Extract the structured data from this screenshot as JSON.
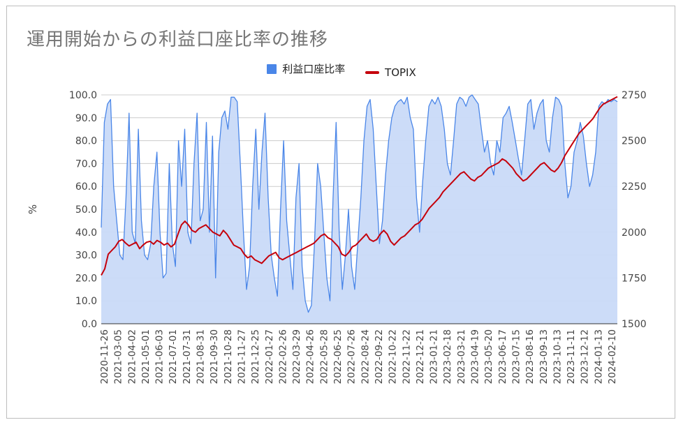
{
  "chart_data": {
    "type": "area+line",
    "title": "運用開始からの利益口座比率の推移",
    "ylabel_left": "%",
    "ylabel_right": "",
    "xlabel": "",
    "ylim_left": [
      0,
      100
    ],
    "ylim_right": [
      1500,
      2750
    ],
    "left_ticks": [
      "0.0",
      "10.0",
      "20.0",
      "30.0",
      "40.0",
      "50.0",
      "60.0",
      "70.0",
      "80.0",
      "90.0",
      "100.0"
    ],
    "right_ticks": [
      "1500",
      "1750",
      "2000",
      "2250",
      "2500",
      "2750"
    ],
    "x_tick_labels": [
      "2020-11-26",
      "2021-03-05",
      "2021-04-02",
      "2021-05-01",
      "2021-06-03",
      "2021-07-01",
      "2021-07-31",
      "2021-08-31",
      "2021-09-30",
      "2021-10-28",
      "2021-11-27",
      "2021-12-25",
      "2022-01-27",
      "2022-02-26",
      "2022-03-29",
      "2022-04-26",
      "2022-05-28",
      "2022-06-25",
      "2022-07-26",
      "2022-08-24",
      "2022-09-22",
      "2022-10-22",
      "2022-11-22",
      "2022-12-21",
      "2023-01-21",
      "2023-02-18",
      "2023-03-21",
      "2023-04-19",
      "2023-05-20",
      "2023-06-17",
      "2023-07-15",
      "2023-08-16",
      "2023-09-13",
      "2023-10-13",
      "2023-11-11",
      "2023-12-12",
      "2024-01-13",
      "2024-02-10"
    ],
    "series": [
      {
        "name": "利益口座比率",
        "axis": "left",
        "kind": "area",
        "color": "#4a86e8",
        "fill": "#c9daf8",
        "values": [
          42,
          88,
          96,
          98,
          60,
          45,
          30,
          28,
          55,
          92,
          40,
          35,
          85,
          45,
          30,
          28,
          35,
          60,
          75,
          40,
          20,
          22,
          70,
          35,
          25,
          80,
          60,
          85,
          40,
          35,
          70,
          92,
          45,
          50,
          88,
          40,
          82,
          20,
          75,
          90,
          93,
          85,
          99,
          99,
          97,
          70,
          40,
          15,
          25,
          60,
          85,
          50,
          75,
          92,
          55,
          30,
          20,
          12,
          50,
          80,
          45,
          30,
          15,
          55,
          70,
          25,
          10,
          5,
          8,
          35,
          70,
          60,
          40,
          20,
          10,
          55,
          88,
          40,
          15,
          30,
          50,
          25,
          15,
          35,
          55,
          80,
          95,
          98,
          85,
          60,
          35,
          45,
          65,
          80,
          90,
          95,
          97,
          98,
          96,
          99,
          90,
          85,
          55,
          40,
          62,
          80,
          95,
          98,
          96,
          99,
          95,
          85,
          70,
          65,
          80,
          96,
          99,
          98,
          95,
          99,
          100,
          98,
          96,
          85,
          75,
          80,
          70,
          65,
          80,
          75,
          90,
          92,
          95,
          88,
          80,
          72,
          65,
          80,
          96,
          98,
          85,
          92,
          96,
          98,
          80,
          75,
          90,
          99,
          98,
          95,
          70,
          55,
          60,
          75,
          80,
          88,
          82,
          70,
          60,
          65,
          75,
          95,
          97,
          96,
          98,
          97,
          98,
          97
        ]
      },
      {
        "name": "TOPIX",
        "axis": "right",
        "kind": "line",
        "color": "#c5000b",
        "values": [
          1765,
          1800,
          1880,
          1900,
          1920,
          1950,
          1960,
          1940,
          1925,
          1935,
          1945,
          1910,
          1930,
          1945,
          1950,
          1935,
          1955,
          1945,
          1930,
          1940,
          1920,
          1935,
          1990,
          2040,
          2060,
          2040,
          2010,
          2000,
          2020,
          2030,
          2040,
          2020,
          2000,
          1990,
          1980,
          2010,
          1990,
          1960,
          1930,
          1920,
          1910,
          1880,
          1860,
          1870,
          1850,
          1840,
          1830,
          1850,
          1870,
          1880,
          1890,
          1860,
          1850,
          1860,
          1870,
          1880,
          1890,
          1900,
          1910,
          1920,
          1930,
          1940,
          1960,
          1980,
          1990,
          1970,
          1960,
          1940,
          1920,
          1880,
          1870,
          1890,
          1920,
          1930,
          1950,
          1970,
          1990,
          1960,
          1950,
          1960,
          1990,
          2010,
          1990,
          1950,
          1930,
          1950,
          1970,
          1980,
          2000,
          2020,
          2040,
          2050,
          2070,
          2100,
          2130,
          2150,
          2170,
          2190,
          2220,
          2240,
          2260,
          2280,
          2300,
          2320,
          2330,
          2310,
          2290,
          2280,
          2300,
          2310,
          2330,
          2350,
          2360,
          2370,
          2380,
          2400,
          2390,
          2370,
          2350,
          2320,
          2300,
          2280,
          2290,
          2310,
          2330,
          2350,
          2370,
          2380,
          2360,
          2340,
          2330,
          2350,
          2380,
          2420,
          2450,
          2480,
          2510,
          2540,
          2560,
          2580,
          2600,
          2620,
          2650,
          2680,
          2700,
          2710,
          2720,
          2730,
          2740
        ]
      }
    ]
  }
}
